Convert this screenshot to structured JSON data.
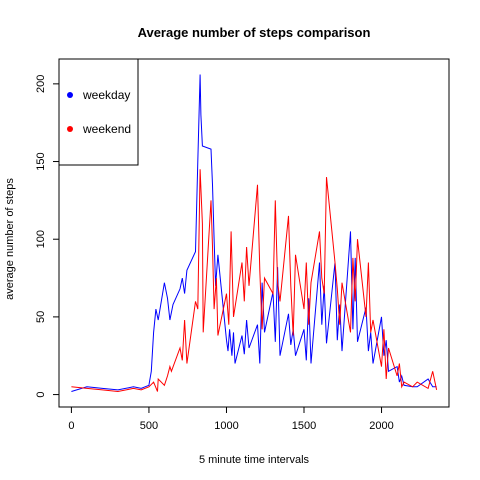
{
  "chart_data": {
    "type": "line",
    "title": "Average number of steps comparison",
    "xlabel": "5 minute time intervals",
    "ylabel": "average number of steps",
    "xlim": [
      -80,
      2435
    ],
    "ylim": [
      -8,
      216
    ],
    "xticks": [
      0,
      500,
      1000,
      1500,
      2000
    ],
    "yticks": [
      0,
      50,
      100,
      150,
      200
    ],
    "legend": "top-left",
    "series": [
      {
        "name": "weekday",
        "color": "#0000ff",
        "x": [
          0,
          100,
          200,
          300,
          400,
          450,
          500,
          515,
          530,
          545,
          560,
          600,
          620,
          635,
          655,
          700,
          715,
          730,
          745,
          800,
          815,
          830,
          835,
          845,
          900,
          910,
          920,
          930,
          945,
          1000,
          1010,
          1020,
          1035,
          1045,
          1055,
          1100,
          1115,
          1130,
          1145,
          1200,
          1215,
          1230,
          1245,
          1300,
          1315,
          1330,
          1345,
          1400,
          1415,
          1430,
          1445,
          1500,
          1515,
          1530,
          1545,
          1600,
          1615,
          1630,
          1645,
          1700,
          1715,
          1730,
          1745,
          1800,
          1815,
          1830,
          1845,
          1900,
          1915,
          1930,
          1945,
          2000,
          2015,
          2030,
          2045,
          2100,
          2115,
          2130,
          2145,
          2200,
          2230,
          2300,
          2330,
          2355
        ],
        "values": [
          2,
          5,
          4,
          3,
          5,
          4,
          6,
          15,
          40,
          55,
          48,
          72,
          62,
          48,
          58,
          68,
          75,
          65,
          80,
          92,
          150,
          206,
          180,
          160,
          158,
          135,
          100,
          70,
          90,
          35,
          28,
          42,
          25,
          40,
          20,
          38,
          26,
          48,
          30,
          45,
          20,
          72,
          40,
          66,
          34,
          82,
          25,
          52,
          32,
          42,
          25,
          42,
          22,
          62,
          20,
          85,
          45,
          70,
          33,
          85,
          35,
          58,
          28,
          105,
          42,
          88,
          34,
          56,
          28,
          40,
          20,
          50,
          25,
          35,
          15,
          18,
          8,
          12,
          6,
          5,
          5,
          10,
          5,
          5
        ]
      },
      {
        "name": "weekend",
        "color": "#ff0000",
        "x": [
          0,
          100,
          200,
          300,
          400,
          450,
          500,
          530,
          555,
          560,
          600,
          620,
          635,
          645,
          700,
          715,
          730,
          745,
          800,
          815,
          830,
          845,
          850,
          900,
          910,
          920,
          935,
          945,
          1000,
          1015,
          1030,
          1045,
          1100,
          1115,
          1130,
          1145,
          1200,
          1215,
          1230,
          1245,
          1300,
          1315,
          1330,
          1345,
          1400,
          1415,
          1430,
          1445,
          1500,
          1515,
          1530,
          1545,
          1600,
          1615,
          1630,
          1645,
          1700,
          1715,
          1730,
          1745,
          1800,
          1815,
          1830,
          1845,
          1900,
          1915,
          1930,
          1945,
          2000,
          2015,
          2030,
          2045,
          2100,
          2115,
          2130,
          2145,
          2200,
          2230,
          2300,
          2330,
          2355
        ],
        "values": [
          5,
          4,
          3,
          2,
          4,
          3,
          5,
          8,
          2,
          10,
          6,
          12,
          18,
          15,
          30,
          22,
          48,
          20,
          60,
          55,
          145,
          110,
          40,
          125,
          95,
          55,
          75,
          38,
          65,
          45,
          105,
          50,
          85,
          60,
          95,
          70,
          135,
          80,
          42,
          75,
          65,
          125,
          72,
          60,
          115,
          70,
          38,
          90,
          55,
          85,
          45,
          72,
          105,
          75,
          65,
          140,
          85,
          68,
          45,
          72,
          40,
          88,
          60,
          100,
          50,
          85,
          40,
          48,
          18,
          42,
          10,
          30,
          12,
          20,
          5,
          8,
          5,
          8,
          4,
          15,
          3
        ]
      }
    ]
  }
}
